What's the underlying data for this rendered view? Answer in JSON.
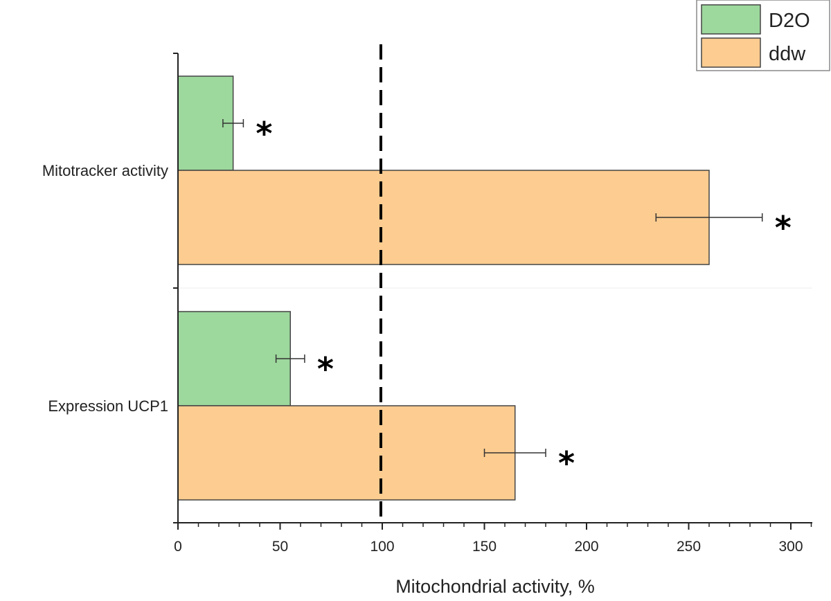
{
  "chart_data": {
    "type": "bar",
    "orientation": "horizontal",
    "categories": [
      "Mitotracker activity",
      "Expression UCP1"
    ],
    "series": [
      {
        "name": "D2O",
        "color": "#9dd89d",
        "values": [
          27,
          55
        ],
        "errors": [
          5,
          7
        ],
        "significance": [
          "*",
          "*"
        ]
      },
      {
        "name": "ddw",
        "color": "#fdcc90",
        "values": [
          260,
          165
        ],
        "errors": [
          26,
          15
        ],
        "significance": [
          "*",
          "*"
        ]
      }
    ],
    "xlabel": "Mitochondrial activity, %",
    "ylabel": "",
    "xlim": [
      0,
      310
    ],
    "xticks": [
      0,
      50,
      100,
      150,
      200,
      250,
      300
    ],
    "xtick_labels": [
      "0",
      "50",
      "100",
      "150",
      "200",
      "250",
      "300"
    ],
    "reference_line": {
      "value": 100,
      "style": "dashed"
    },
    "legend_position": "top-right",
    "grid": false
  }
}
